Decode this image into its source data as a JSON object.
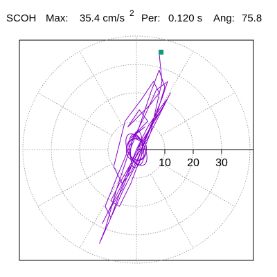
{
  "header": {
    "station": "SCOH",
    "max_label": "Max:",
    "max_value": "35.4 cm/s",
    "max_exp": "2",
    "per_label": "Per:",
    "per_value": "0.120 s",
    "ang_label": "Ang:",
    "ang_value": "75.8"
  },
  "colors": {
    "trace": "#8800cc",
    "marker": "#119977",
    "grid": "#888888",
    "axis": "#000000"
  },
  "chart_data": {
    "type": "polar-particle-motion",
    "title": "",
    "radial_rings": [
      10,
      20,
      30,
      40
    ],
    "radial_ticks": [
      "10",
      "20",
      "30"
    ],
    "spoke_angles_deg": [
      0,
      30,
      60,
      90,
      120,
      150,
      180,
      210,
      240,
      270,
      300,
      330
    ],
    "peak": {
      "amplitude": 35.4,
      "angle_deg": 75.8
    },
    "trace_points": [
      [
        0,
        0
      ],
      [
        2,
        3
      ],
      [
        -1,
        5
      ],
      [
        3,
        8
      ],
      [
        -2,
        4
      ],
      [
        4,
        10
      ],
      [
        1,
        14
      ],
      [
        -3,
        8
      ],
      [
        5,
        16
      ],
      [
        8,
        20
      ],
      [
        6,
        24
      ],
      [
        2,
        18
      ],
      [
        -4,
        10
      ],
      [
        -6,
        2
      ],
      [
        -8,
        -6
      ],
      [
        -5,
        -12
      ],
      [
        -2,
        -8
      ],
      [
        1,
        -2
      ],
      [
        4,
        6
      ],
      [
        9,
        18
      ],
      [
        11,
        24
      ],
      [
        7,
        21
      ],
      [
        3,
        12
      ],
      [
        -2,
        2
      ],
      [
        -7,
        -10
      ],
      [
        -11,
        -20
      ],
      [
        -9,
        -24
      ],
      [
        -5,
        -15
      ],
      [
        0,
        -5
      ],
      [
        3,
        3
      ],
      [
        6,
        10
      ],
      [
        10,
        16
      ],
      [
        12,
        20
      ],
      [
        9,
        14
      ],
      [
        4,
        4
      ],
      [
        -1,
        -4
      ],
      [
        -5,
        -14
      ],
      [
        -10,
        -22
      ],
      [
        -12,
        -26
      ],
      [
        -8,
        -18
      ],
      [
        -3,
        -8
      ],
      [
        2,
        2
      ],
      [
        7,
        12
      ],
      [
        10,
        22
      ],
      [
        8,
        28
      ],
      [
        5,
        20
      ],
      [
        1,
        8
      ],
      [
        -3,
        -2
      ],
      [
        -7,
        -14
      ],
      [
        -11,
        -28
      ],
      [
        -13,
        -33
      ],
      [
        -9,
        -24
      ],
      [
        -4,
        -10
      ],
      [
        0,
        0
      ],
      [
        4,
        8
      ],
      [
        8,
        14
      ],
      [
        11,
        18
      ],
      [
        7,
        11
      ],
      [
        2,
        3
      ],
      [
        -2,
        -5
      ],
      [
        -6,
        -12
      ],
      [
        -9,
        -18
      ],
      [
        -6,
        -20
      ],
      [
        -2,
        -12
      ],
      [
        1,
        -4
      ],
      [
        5,
        6
      ],
      [
        9,
        24
      ],
      [
        8,
        34
      ],
      [
        8.7,
        34.3
      ]
    ]
  }
}
